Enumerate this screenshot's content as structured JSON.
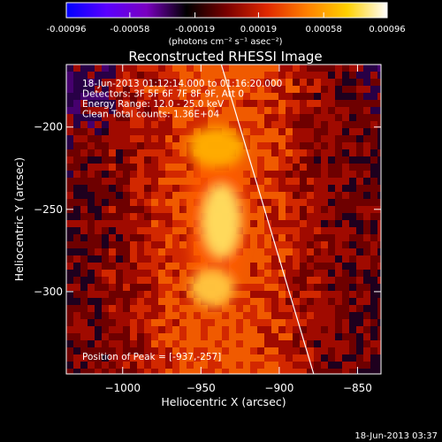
{
  "colorbar": {
    "tick_labels": [
      "-0.00096",
      "-0.00058",
      "-0.00019",
      "0.00019",
      "0.00058",
      "0.00096"
    ],
    "tick_values": [
      -0.00096,
      -0.00058,
      -0.00019,
      0.00019,
      0.00058,
      0.00096
    ],
    "range": [
      -0.00096,
      0.00096
    ],
    "unit_label": "(photons cm⁻² s⁻¹ asec⁻²)",
    "colors": [
      "#0000ff",
      "#5a00ff",
      "#7a00c0",
      "#000000",
      "#7a0000",
      "#e02800",
      "#ff8000",
      "#ffd000",
      "#ffffff"
    ]
  },
  "plot": {
    "title": "Reconstructed RHESSI Image",
    "info_lines": [
      "18-Jun-2013 01:12:14.000 to 01:16:20.000",
      "Detectors: 3F 5F 6F 7F 8F 9F, Att 0",
      "Energy Range: 12.0 - 25.0 keV",
      "Clean    Total counts: 1.36E+04"
    ],
    "peak_text": "Position of Peak = [-937,-257]",
    "xlabel": "Heliocentric X (arcsec)",
    "ylabel": "Heliocentric Y (arcsec)",
    "xticks": [
      {
        "label": "−1000",
        "value": -1000
      },
      {
        "label": "−950",
        "value": -950
      },
      {
        "label": "−900",
        "value": -900
      },
      {
        "label": "−850",
        "value": -850
      }
    ],
    "yticks": [
      {
        "label": "−200",
        "value": -200
      },
      {
        "label": "−250",
        "value": -250
      },
      {
        "label": "−300",
        "value": -300
      }
    ],
    "xlim": [
      -1036,
      -835
    ],
    "ylim": [
      -350,
      -162
    ],
    "limb_line": {
      "start": [
        -937,
        -162
      ],
      "end": [
        -878,
        -350
      ]
    },
    "sources": [
      {
        "name": "upper",
        "x": -940,
        "y": -212,
        "rx": 18,
        "ry": 12
      },
      {
        "name": "middle",
        "x": -937,
        "y": -257,
        "rx": 12,
        "ry": 22
      },
      {
        "name": "lower",
        "x": -943,
        "y": -298,
        "rx": 14,
        "ry": 11
      }
    ]
  },
  "footer": {
    "timestamp": "18-Jun-2013 03:37"
  },
  "chart_data": {
    "type": "heatmap",
    "title": "Reconstructed RHESSI Image",
    "xlabel": "Heliocentric X (arcsec)",
    "ylabel": "Heliocentric Y (arcsec)",
    "xlim": [
      -1036,
      -835
    ],
    "ylim": [
      -350,
      -162
    ],
    "colorbar_range": [
      -0.00096,
      0.00096
    ],
    "peak": [
      -937,
      -257
    ]
  }
}
